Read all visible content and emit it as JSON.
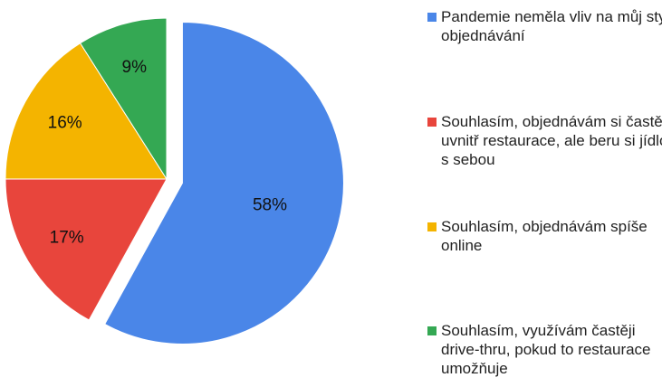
{
  "chart_data": {
    "type": "pie",
    "categories": [
      "Pandemie neměla vliv na můj styl objednávání",
      "Souhlasím, objednávám si častěji uvnitř restaurace, ale beru si jídlo s sebou",
      "Souhlasím, objednávám spíše online",
      "Souhlasím, využívám častěji drive-thru, pokud to restaurace umožňuje"
    ],
    "values": [
      58,
      17,
      16,
      9
    ],
    "value_labels": [
      "58%",
      "17%",
      "16%",
      "9%"
    ],
    "colors": [
      "#4a86e8",
      "#e8453c",
      "#f4b400",
      "#34a853"
    ],
    "exploded": [
      true,
      false,
      false,
      false
    ],
    "legend": "right"
  }
}
